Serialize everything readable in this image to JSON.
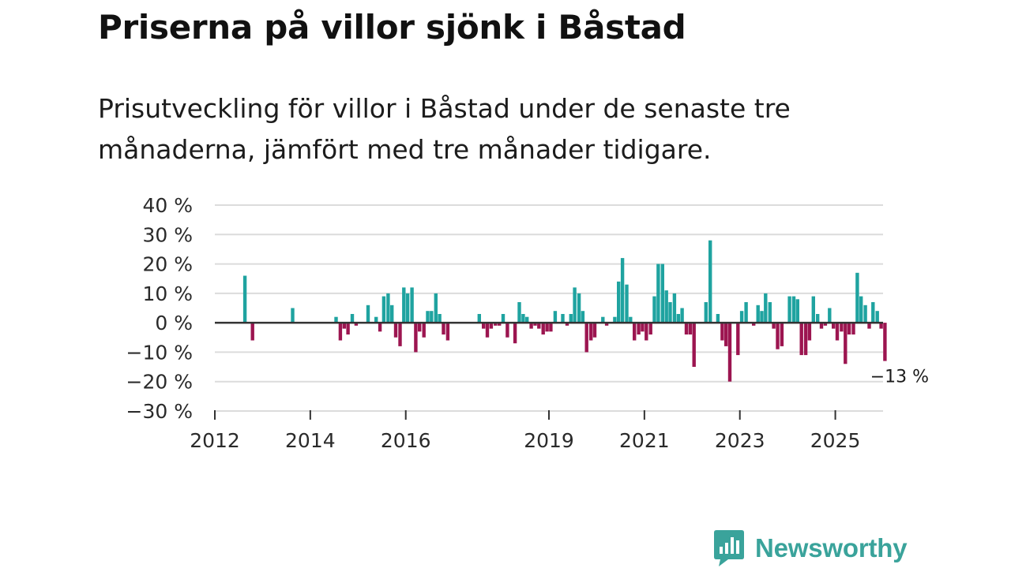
{
  "header": {
    "title": "Priserna på villor sjönk i Båstad",
    "subtitle": "Prisutveckling för villor i Båstad under de senaste tre månaderna, jämfört med tre månader tidigare."
  },
  "brand": {
    "name": "Newsworthy",
    "logo_icon": "bar-chart-speech-bubble-icon"
  },
  "colors": {
    "positive": "#1fa3a0",
    "negative": "#9c1550",
    "grid": "#dcdcdc",
    "zero": "#333333",
    "brand": "#3aa39b"
  },
  "chart_data": {
    "type": "bar",
    "title": "Priserna på villor sjönk i Båstad",
    "xlabel": "",
    "ylabel": "",
    "ylim": [
      -30,
      40
    ],
    "yticks": [
      40,
      30,
      20,
      10,
      0,
      -10,
      -20,
      -30
    ],
    "ytick_labels": [
      "40 %",
      "30 %",
      "20 %",
      "10 %",
      "0 %",
      "−10 %",
      "−20 %",
      "−30 %"
    ],
    "xlim": [
      2012.0,
      2026.0
    ],
    "xticks": [
      2012,
      2014,
      2016,
      2019,
      2021,
      2023,
      2025
    ],
    "xtick_labels": [
      "2012",
      "2014",
      "2016",
      "2019",
      "2021",
      "2023",
      "2025"
    ],
    "annotation": {
      "text": "−13 %",
      "x": 2025.75,
      "y": -13
    },
    "series": [
      {
        "name": "Prisutveckling",
        "points": [
          [
            2012.63,
            16
          ],
          [
            2012.79,
            -6
          ],
          [
            2013.63,
            5
          ],
          [
            2014.54,
            2
          ],
          [
            2014.63,
            -6
          ],
          [
            2014.71,
            -2
          ],
          [
            2014.79,
            -4
          ],
          [
            2014.88,
            3
          ],
          [
            2014.96,
            -1
          ],
          [
            2015.21,
            6
          ],
          [
            2015.38,
            2
          ],
          [
            2015.46,
            -3
          ],
          [
            2015.54,
            9
          ],
          [
            2015.63,
            10
          ],
          [
            2015.71,
            6
          ],
          [
            2015.79,
            -5
          ],
          [
            2015.88,
            -8
          ],
          [
            2015.96,
            12
          ],
          [
            2016.04,
            10
          ],
          [
            2016.13,
            12
          ],
          [
            2016.21,
            -10
          ],
          [
            2016.29,
            -3
          ],
          [
            2016.38,
            -5
          ],
          [
            2016.46,
            4
          ],
          [
            2016.54,
            4
          ],
          [
            2016.63,
            10
          ],
          [
            2016.71,
            3
          ],
          [
            2016.79,
            -4
          ],
          [
            2016.88,
            -6
          ],
          [
            2017.54,
            3
          ],
          [
            2017.63,
            -2
          ],
          [
            2017.71,
            -5
          ],
          [
            2017.79,
            -2
          ],
          [
            2017.88,
            -1
          ],
          [
            2017.96,
            -1
          ],
          [
            2018.04,
            3
          ],
          [
            2018.13,
            -5
          ],
          [
            2018.29,
            -7
          ],
          [
            2018.38,
            7
          ],
          [
            2018.46,
            3
          ],
          [
            2018.54,
            2
          ],
          [
            2018.63,
            -2
          ],
          [
            2018.71,
            -1
          ],
          [
            2018.79,
            -2
          ],
          [
            2018.88,
            -4
          ],
          [
            2018.96,
            -3
          ],
          [
            2019.04,
            -3
          ],
          [
            2019.13,
            4
          ],
          [
            2019.29,
            3
          ],
          [
            2019.38,
            -1
          ],
          [
            2019.46,
            3
          ],
          [
            2019.54,
            12
          ],
          [
            2019.63,
            10
          ],
          [
            2019.71,
            4
          ],
          [
            2019.79,
            -10
          ],
          [
            2019.88,
            -6
          ],
          [
            2019.96,
            -5
          ],
          [
            2020.13,
            2
          ],
          [
            2020.21,
            -1
          ],
          [
            2020.38,
            2
          ],
          [
            2020.46,
            14
          ],
          [
            2020.54,
            22
          ],
          [
            2020.63,
            13
          ],
          [
            2020.71,
            2
          ],
          [
            2020.79,
            -6
          ],
          [
            2020.88,
            -4
          ],
          [
            2020.96,
            -3
          ],
          [
            2021.04,
            -6
          ],
          [
            2021.13,
            -4
          ],
          [
            2021.21,
            9
          ],
          [
            2021.29,
            20
          ],
          [
            2021.38,
            20
          ],
          [
            2021.46,
            11
          ],
          [
            2021.54,
            7
          ],
          [
            2021.63,
            10
          ],
          [
            2021.71,
            3
          ],
          [
            2021.79,
            5
          ],
          [
            2021.88,
            -4
          ],
          [
            2021.96,
            -4
          ],
          [
            2022.04,
            -15
          ],
          [
            2022.29,
            7
          ],
          [
            2022.38,
            28
          ],
          [
            2022.54,
            3
          ],
          [
            2022.63,
            -6
          ],
          [
            2022.71,
            -8
          ],
          [
            2022.79,
            -20
          ],
          [
            2022.96,
            -11
          ],
          [
            2023.04,
            4
          ],
          [
            2023.13,
            7
          ],
          [
            2023.29,
            -1
          ],
          [
            2023.38,
            6
          ],
          [
            2023.46,
            4
          ],
          [
            2023.54,
            10
          ],
          [
            2023.63,
            7
          ],
          [
            2023.71,
            -2
          ],
          [
            2023.79,
            -9
          ],
          [
            2023.88,
            -8
          ],
          [
            2024.04,
            9
          ],
          [
            2024.13,
            9
          ],
          [
            2024.21,
            8
          ],
          [
            2024.29,
            -11
          ],
          [
            2024.38,
            -11
          ],
          [
            2024.46,
            -6
          ],
          [
            2024.54,
            9
          ],
          [
            2024.63,
            3
          ],
          [
            2024.71,
            -2
          ],
          [
            2024.79,
            -1
          ],
          [
            2024.88,
            5
          ],
          [
            2024.96,
            -2
          ],
          [
            2025.04,
            -6
          ],
          [
            2025.13,
            -3
          ],
          [
            2025.21,
            -14
          ],
          [
            2025.29,
            -4
          ],
          [
            2025.38,
            -4
          ],
          [
            2025.46,
            17
          ],
          [
            2025.54,
            9
          ],
          [
            2025.63,
            6
          ],
          [
            2025.71,
            -2
          ],
          [
            2025.79,
            7
          ],
          [
            2025.88,
            4
          ],
          [
            2025.96,
            -2
          ],
          [
            2026.04,
            -13
          ]
        ]
      }
    ]
  }
}
